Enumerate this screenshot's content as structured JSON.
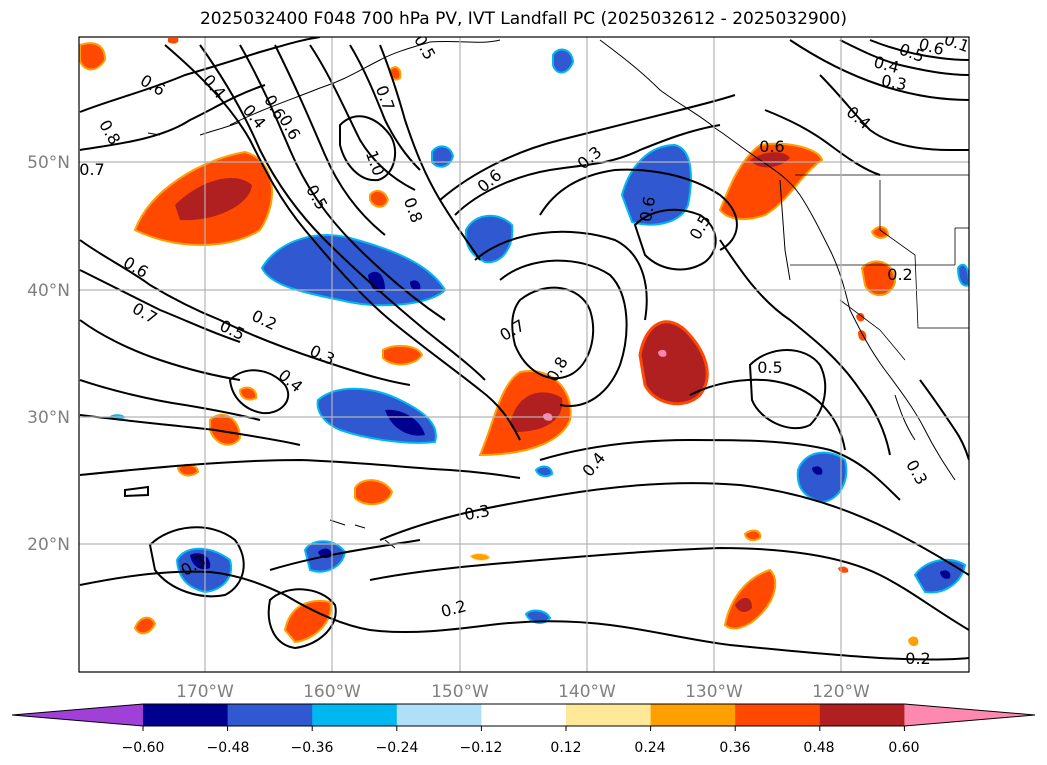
{
  "title": "2025032400 F048 700 hPa PV, IVT Landfall PC (2025032612 - 2025032900)",
  "map": {
    "lat_labels": [
      "50°N",
      "40°N",
      "30°N",
      "20°N"
    ],
    "lon_labels": [
      "170°W",
      "160°W",
      "150°W",
      "140°W",
      "130°W",
      "120°W"
    ],
    "gridline_color": "#b3b3b3",
    "label_color": "#808080",
    "contour_labels": [
      "0.6",
      "0.4",
      "0.8",
      "0.7",
      "0.7",
      "0.5",
      "0.6",
      "0.6",
      "0.4",
      "0.1",
      "0.5",
      "0.6",
      "0.4",
      "0.3",
      "0.4",
      "1.0",
      "0.8",
      "0.5",
      "0.3",
      "0.6",
      "0.6",
      "0.6",
      "0.5",
      "0.6",
      "0.7",
      "0.2",
      "0.5",
      "0.3",
      "0.7",
      "0.8",
      "0.5",
      "0.4",
      "0.4",
      "0.2",
      "0.3",
      "0.3",
      "0.3",
      "0.2",
      "0.2"
    ]
  },
  "colorbar": {
    "ticks": [
      "−0.60",
      "−0.48",
      "−0.36",
      "−0.24",
      "−0.12",
      "0.12",
      "0.24",
      "0.36",
      "0.48",
      "0.60"
    ],
    "colors": [
      "#a040d8",
      "#000090",
      "#3058d0",
      "#00b8f0",
      "#b0e0f8",
      "#ffffff",
      "#ffe898",
      "#ffa000",
      "#ff4800",
      "#b02020",
      "#ff88b0"
    ]
  }
}
